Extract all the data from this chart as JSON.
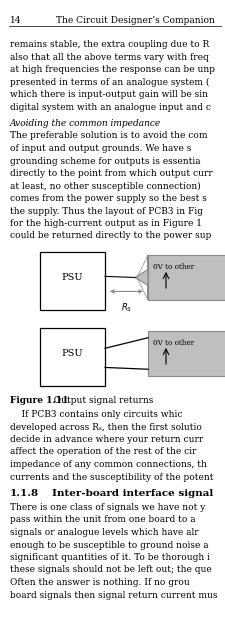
{
  "page_number": "14",
  "book_title": "The Circuit Designer’s Companion",
  "bg_color": "#ffffff",
  "text_color": "#000000",
  "gray_color": "#c0bfbf",
  "body_text": [
    "remains stable, the extra coupling due to R",
    "also that all the above terms vary with freq",
    "at high frequencies the response can be unp",
    "presented in terms of an analogue system (",
    "which there is input-output gain will be sin",
    "digital system with an analogue input and c"
  ],
  "italic_heading": "Avoiding the common impedance",
  "para1_text": [
    "The preferable solution is to avoid the com",
    "of input and output grounds. We have s",
    "grounding scheme for outputs is essentia",
    "directly to the point from which output curr",
    "at least, no other susceptible connection)",
    "comes from the power supply so the best s",
    "the supply. Thus the layout of PCB3 in Fig",
    "for the high-current output as in Figure 1",
    "could be returned directly to the power sup"
  ],
  "figure_caption_bold": "Figure 1.11",
  "figure_caption_rest": "  Output signal returns",
  "sec_para": [
    "    If PCB3 contains only circuits whic",
    "developed across Rₛ, then the first solutio",
    "decide in advance where your return curr",
    "affect the operation of the rest of the cir",
    "impedance of any common connections, th",
    "currents and the susceptibility of the potent"
  ],
  "section_heading_num": "1.1.8",
  "section_heading_title": "Inter-board interface signal",
  "section_text": [
    "There is one class of signals we have not y",
    "pass within the unit from one board to a",
    "signals or analogue levels which have alr",
    "enough to be susceptible to ground noise a",
    "significant quantities of it. To be thorough i",
    "these signals should not be left out; the que",
    "Often the answer is nothing. If no grou",
    "board signals then signal return current mus"
  ]
}
